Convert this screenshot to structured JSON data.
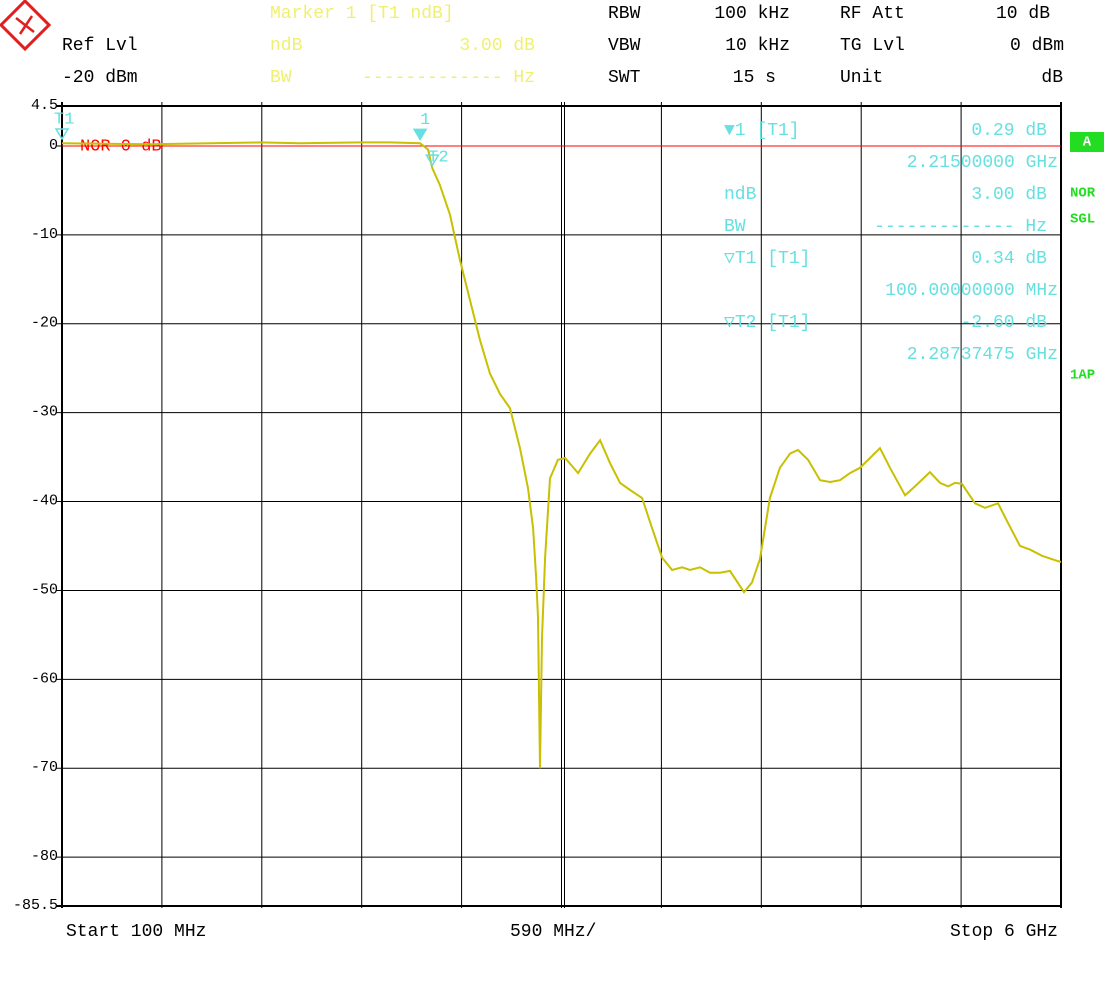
{
  "header": {
    "ref_lvl_label": "Ref Lvl",
    "ref_lvl": "-20 dBm",
    "marker_title": "Marker 1 [T1 ndB]",
    "ndb_label": "ndB",
    "ndb_value": "3.00 dB",
    "bw_label": "BW",
    "bw_value": "------------- Hz",
    "rbw_label": "RBW",
    "rbw": "100 kHz",
    "vbw_label": "VBW",
    "vbw": "10 kHz",
    "swt_label": "SWT",
    "swt": "15 s",
    "rf_att_label": "RF Att",
    "rf_att": "10 dB",
    "tg_lvl_label": "TG Lvl",
    "tg_lvl": "0 dBm",
    "unit_label": "Unit",
    "unit": "dB"
  },
  "readouts": [
    {
      "label": "▼1 [T1]",
      "value": "0.29 dB"
    },
    {
      "value": "2.21500000 GHz"
    },
    {
      "label": "ndB",
      "value": "3.00 dB"
    },
    {
      "label": "BW",
      "value": "------------- Hz"
    },
    {
      "label": "▽T1 [T1]",
      "value": "0.34 dB"
    },
    {
      "value": "100.00000000 MHz"
    },
    {
      "label": "▽T2 [T1]",
      "value": "-2.60 dB"
    },
    {
      "value": "2.28737475 GHz"
    }
  ],
  "side_labels": {
    "trace": "A",
    "nor": "NOR",
    "sgl": "SGL",
    "ap": "1AP"
  },
  "chart_data": {
    "type": "line",
    "x_start_label": "Start 100 MHz",
    "x_div_label": "590 MHz/",
    "x_stop_label": "Stop 6 GHz",
    "xlim": [
      100,
      6000
    ],
    "ylim": [
      -85.5,
      4.5
    ],
    "yticks": [
      4.5,
      0,
      -10,
      -20,
      -30,
      -40,
      -50,
      -60,
      -70,
      -80,
      -85.5
    ],
    "grid": true,
    "color": "#c8c000",
    "x": [
      100,
      620,
      1269,
      1506,
      1860,
      2037,
      2215,
      2262,
      2287,
      2332,
      2391,
      2450,
      2509,
      2568,
      2628,
      2687,
      2746,
      2805,
      2852,
      2882,
      2900,
      2911,
      2923,
      2935,
      2953,
      2982,
      3029,
      3071,
      3148,
      3219,
      3278,
      3337,
      3396,
      3455,
      3526,
      3585,
      3644,
      3703,
      3762,
      3809,
      3868,
      3927,
      3986,
      4045,
      4128,
      4175,
      4222,
      4281,
      4340,
      4400,
      4447,
      4506,
      4577,
      4636,
      4695,
      4754,
      4813,
      4872,
      4931,
      4990,
      5079,
      5138,
      5226,
      5286,
      5333,
      5374,
      5415,
      5492,
      5551,
      5628,
      5687,
      5758,
      5817,
      5888,
      5965,
      6000
    ],
    "values": [
      0.3,
      0.2,
      0.4,
      0.3,
      0.4,
      0.4,
      0.3,
      -0.4,
      -2.5,
      -4.4,
      -7.7,
      -12.8,
      -17.3,
      -21.8,
      -25.6,
      -27.9,
      -29.5,
      -34.0,
      -38.5,
      -43.0,
      -48.5,
      -53.0,
      -70.0,
      -55.3,
      -46.3,
      -37.4,
      -35.3,
      -35.1,
      -36.8,
      -34.6,
      -33.1,
      -35.7,
      -37.9,
      -38.7,
      -39.6,
      -43.0,
      -46.3,
      -47.7,
      -47.4,
      -47.7,
      -47.4,
      -48.0,
      -48.0,
      -47.8,
      -50.2,
      -49.1,
      -46.5,
      -39.6,
      -36.2,
      -34.6,
      -34.2,
      -35.3,
      -37.6,
      -37.8,
      -37.6,
      -36.8,
      -36.2,
      -35.1,
      -34.0,
      -36.2,
      -39.3,
      -38.3,
      -36.7,
      -37.9,
      -38.3,
      -37.9,
      -38.0,
      -40.2,
      -40.7,
      -40.2,
      -42.4,
      -45.0,
      -45.4,
      -46.1,
      -46.6,
      -46.8
    ],
    "reference_line": {
      "value": 0,
      "label": "NOR 0 dB",
      "color": "#ff0000"
    },
    "markers": [
      {
        "label": "1",
        "x": 2215,
        "y": 0.29,
        "filled": true
      },
      {
        "label": "T1",
        "x": 100,
        "y": 0.34,
        "filled": false
      },
      {
        "label": "T2",
        "x": 2287.37475,
        "y": -2.6,
        "filled": false
      }
    ]
  }
}
